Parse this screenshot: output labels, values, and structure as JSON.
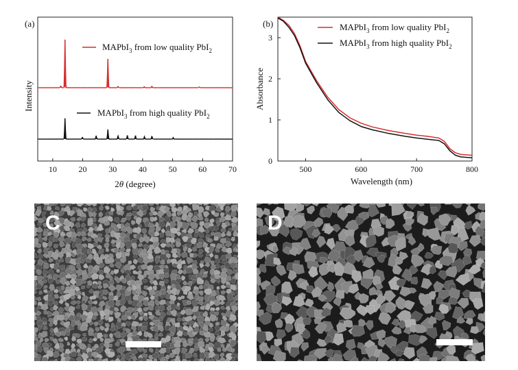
{
  "chart_data": [
    {
      "panel_label": "(a)",
      "type": "line",
      "xlabel_prefix": "2",
      "xlabel_symbol": "θ",
      "xlabel_suffix": " (degree)",
      "ylabel": "Intensity",
      "xlim": [
        5,
        70
      ],
      "xticks": [
        10,
        20,
        30,
        40,
        50,
        60,
        70
      ],
      "yticks": [],
      "colors": {
        "low": "#d62d2d",
        "high": "#111111"
      },
      "series": [
        {
          "key": "low",
          "name_main": "MAPbI",
          "name_sub1": "3",
          "name_mid": " from low quality PbI",
          "name_sub2": "2",
          "baseline": 0.0,
          "peaks": [
            [
              12.7,
              0.04
            ],
            [
              14.1,
              1.0
            ],
            [
              28.4,
              0.6
            ],
            [
              31.8,
              0.03
            ],
            [
              40.5,
              0.02
            ],
            [
              43.1,
              0.03
            ],
            [
              58.9,
              0.02
            ]
          ]
        },
        {
          "key": "high",
          "name_main": "MAPbI",
          "name_sub1": "3",
          "name_mid": " from high quality PbI",
          "name_sub2": "2",
          "baseline": 0.0,
          "peaks": [
            [
              14.1,
              0.43
            ],
            [
              19.9,
              0.04
            ],
            [
              24.5,
              0.07
            ],
            [
              28.4,
              0.2
            ],
            [
              31.8,
              0.07
            ],
            [
              34.9,
              0.08
            ],
            [
              37.6,
              0.07
            ],
            [
              40.6,
              0.05
            ],
            [
              43.1,
              0.06
            ],
            [
              50.2,
              0.03
            ]
          ]
        }
      ]
    },
    {
      "panel_label": "(b)",
      "type": "line",
      "xlabel": "Wavelength (nm)",
      "ylabel": "Absorbance",
      "xlim": [
        450,
        800
      ],
      "ylim": [
        0,
        3.5
      ],
      "xticks": [
        500,
        600,
        700,
        800
      ],
      "yticks": [
        0,
        1,
        2,
        3
      ],
      "colors": {
        "low": "#d62d2d",
        "high": "#111111"
      },
      "series": [
        {
          "key": "low",
          "name_main": "MAPbI",
          "name_sub1": "3",
          "name_mid": " from low quality PbI",
          "name_sub2": "2",
          "x": [
            450,
            460,
            470,
            480,
            490,
            500,
            520,
            540,
            560,
            580,
            600,
            620,
            650,
            680,
            700,
            720,
            740,
            750,
            760,
            770,
            780,
            800
          ],
          "y": [
            3.5,
            3.42,
            3.3,
            3.1,
            2.8,
            2.42,
            1.95,
            1.55,
            1.25,
            1.05,
            0.92,
            0.83,
            0.74,
            0.67,
            0.63,
            0.6,
            0.56,
            0.48,
            0.3,
            0.2,
            0.16,
            0.14
          ]
        },
        {
          "key": "high",
          "name_main": "MAPbI",
          "name_sub1": "3",
          "name_mid": " from high quality PbI",
          "name_sub2": "2",
          "x": [
            450,
            460,
            470,
            480,
            490,
            500,
            520,
            540,
            560,
            580,
            600,
            620,
            650,
            680,
            700,
            720,
            740,
            750,
            760,
            770,
            780,
            800
          ],
          "y": [
            3.48,
            3.4,
            3.25,
            3.05,
            2.75,
            2.38,
            1.9,
            1.49,
            1.18,
            0.98,
            0.84,
            0.76,
            0.67,
            0.6,
            0.56,
            0.53,
            0.5,
            0.42,
            0.25,
            0.14,
            0.1,
            0.08
          ]
        }
      ]
    }
  ],
  "images": [
    {
      "label": "C",
      "description": "SEM micrograph with fine, densely packed small grains"
    },
    {
      "label": "D",
      "description": "SEM micrograph with larger, angular, loosely packed grains"
    }
  ]
}
